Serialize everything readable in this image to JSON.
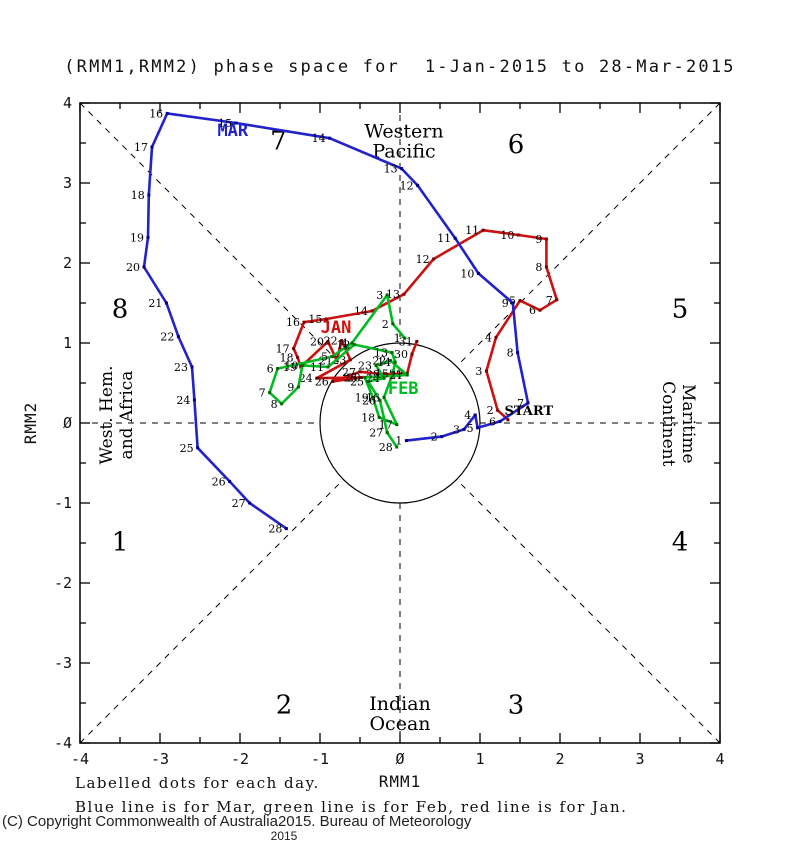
{
  "title": "(RMM1,RMM2) phase space for  1-Jan-2015 to 28-Mar-2015",
  "footer": {
    "caption_line1": "Labelled dots for each day.",
    "caption_line2": "Blue line is for Mar, green line is for Feb, red line is for Jan.",
    "copyright": "(C) Copyright Commonwealth of Australia2015. Bureau of Meteorology",
    "year": "2015"
  },
  "chart_data": {
    "type": "line",
    "title": "(RMM1,RMM2) phase space for  1-Jan-2015 to 28-Mar-2015",
    "xlabel": "RMM1",
    "ylabel": "RMM2",
    "xlim": [
      -4,
      4
    ],
    "ylim": [
      -4,
      4
    ],
    "grid": false,
    "unit_circle_radius": 1,
    "tick_minor_step": 0.5,
    "tick_values": [
      -4,
      -3,
      -2,
      -1,
      0,
      1,
      2,
      3,
      4
    ],
    "tick_labels": [
      "-4",
      "-3",
      "-2",
      "-1",
      "Ø",
      "1",
      "2",
      "3",
      "4"
    ],
    "quadrant_numbers": [
      {
        "label": "1",
        "x": -3.5,
        "y": -1.48
      },
      {
        "label": "2",
        "x": -1.45,
        "y": -3.52
      },
      {
        "label": "3",
        "x": 1.45,
        "y": -3.52
      },
      {
        "label": "4",
        "x": 3.5,
        "y": -1.48
      },
      {
        "label": "5",
        "x": 3.5,
        "y": 1.43
      },
      {
        "label": "6",
        "x": 1.45,
        "y": 3.49
      },
      {
        "label": "7",
        "x": -1.52,
        "y": 3.53
      },
      {
        "label": "8",
        "x": -3.5,
        "y": 1.43
      }
    ],
    "region_labels": [
      {
        "name": "western-pacific",
        "lines": [
          "Western",
          "Pacific"
        ],
        "x": 0.05,
        "y": 3.52,
        "rotate": 0
      },
      {
        "name": "indian-ocean",
        "lines": [
          "Indian",
          "Ocean"
        ],
        "x": 0.0,
        "y": -3.64,
        "rotate": 0
      },
      {
        "name": "west-hem-africa",
        "lines": [
          "West. Hem.",
          "and Africa"
        ],
        "x": -3.55,
        "y": 0.1,
        "rotate": -90
      },
      {
        "name": "maritime-continent",
        "lines": [
          "Maritime",
          "Continent"
        ],
        "x": 3.49,
        "y": -0.01,
        "rotate": 90
      }
    ],
    "start_label": {
      "text": "START",
      "x": 1.61,
      "y": 0.15
    },
    "series": [
      {
        "name": "Jan",
        "month_label": "JAN",
        "color": "#cc1111",
        "dot_color": "#7a0000",
        "label_x": -0.8,
        "label_y": 1.2,
        "label_day_from": 2,
        "points": [
          [
            1,
            1.35,
            0.04
          ],
          [
            2,
            1.22,
            0.16
          ],
          [
            3,
            1.08,
            0.65
          ],
          [
            4,
            1.2,
            1.07
          ],
          [
            5,
            1.5,
            1.53
          ],
          [
            6,
            1.75,
            1.41
          ],
          [
            7,
            1.96,
            1.54
          ],
          [
            8,
            1.83,
            1.95
          ],
          [
            9,
            1.83,
            2.3
          ],
          [
            10,
            1.48,
            2.35
          ],
          [
            11,
            1.04,
            2.41
          ],
          [
            12,
            0.42,
            2.05
          ],
          [
            13,
            0.05,
            1.61
          ],
          [
            14,
            -0.35,
            1.4
          ],
          [
            15,
            -0.92,
            1.3
          ],
          [
            16,
            -1.2,
            1.26
          ],
          [
            17,
            -1.33,
            0.93
          ],
          [
            18,
            -1.28,
            0.82
          ],
          [
            19,
            -1.24,
            0.7
          ],
          [
            20,
            -0.9,
            1.02
          ],
          [
            21,
            -0.79,
            0.78
          ],
          [
            22,
            -0.73,
            1.03
          ],
          [
            23,
            -0.62,
            0.79
          ],
          [
            24,
            -1.04,
            0.56
          ],
          [
            25,
            -0.48,
            0.57
          ],
          [
            26,
            -0.84,
            0.52
          ],
          [
            27,
            -0.5,
            0.64
          ],
          [
            28,
            -0.2,
            0.61
          ],
          [
            29,
            0.09,
            0.62
          ],
          [
            30,
            0.15,
            0.86
          ],
          [
            31,
            0.21,
            1.02
          ]
        ]
      },
      {
        "name": "Feb",
        "month_label": "FEB",
        "color": "#00bb22",
        "dot_color": "#006600",
        "label_x": 0.04,
        "label_y": 0.44,
        "label_day_from": 1,
        "points": [
          [
            1,
            0.06,
            1.06
          ],
          [
            2,
            -0.09,
            1.24
          ],
          [
            3,
            -0.16,
            1.6
          ],
          [
            4,
            -0.6,
            1.0
          ],
          [
            5,
            -0.85,
            0.83
          ],
          [
            6,
            -1.53,
            0.68
          ],
          [
            7,
            -1.63,
            0.38
          ],
          [
            8,
            -1.48,
            0.24
          ],
          [
            9,
            -1.27,
            0.45
          ],
          [
            10,
            -1.22,
            0.72
          ],
          [
            11,
            -0.9,
            0.7
          ],
          [
            12,
            -0.57,
            0.98
          ],
          [
            13,
            -0.1,
            0.88
          ],
          [
            14,
            -0.06,
            0.76
          ],
          [
            15,
            -0.09,
            0.62
          ],
          [
            16,
            -0.2,
            0.32
          ],
          [
            17,
            -0.04,
            -0.02
          ],
          [
            18,
            -0.26,
            0.07
          ],
          [
            19,
            -0.34,
            0.32
          ],
          [
            20,
            -0.44,
            0.57
          ],
          [
            21,
            0.09,
            0.6
          ],
          [
            22,
            -0.12,
            0.78
          ],
          [
            23,
            -0.3,
            0.72
          ],
          [
            24,
            -0.2,
            0.56
          ],
          [
            25,
            -0.4,
            0.52
          ],
          [
            26,
            -0.25,
            0.28
          ],
          [
            27,
            -0.16,
            -0.12
          ],
          [
            28,
            -0.04,
            -0.3
          ]
        ]
      },
      {
        "name": "Mar",
        "month_label": "MAR",
        "color": "#2222cc",
        "dot_color": "#00008b",
        "label_x": -2.09,
        "label_y": 3.66,
        "label_day_from": 1,
        "points": [
          [
            1,
            0.08,
            -0.22
          ],
          [
            2,
            0.52,
            -0.17
          ],
          [
            3,
            0.8,
            -0.08
          ],
          [
            4,
            0.94,
            0.1
          ],
          [
            5,
            0.97,
            -0.06
          ],
          [
            6,
            1.25,
            0.02
          ],
          [
            7,
            1.6,
            0.25
          ],
          [
            8,
            1.47,
            0.88
          ],
          [
            9,
            1.41,
            1.5
          ],
          [
            10,
            0.98,
            1.87
          ],
          [
            11,
            0.69,
            2.31
          ],
          [
            12,
            0.22,
            2.97
          ],
          [
            13,
            0.02,
            3.18
          ],
          [
            14,
            -0.88,
            3.56
          ],
          [
            15,
            -2.05,
            3.75
          ],
          [
            16,
            -2.91,
            3.87
          ],
          [
            17,
            -3.1,
            3.45
          ],
          [
            18,
            -3.14,
            2.85
          ],
          [
            19,
            -3.15,
            2.32
          ],
          [
            20,
            -3.2,
            1.95
          ],
          [
            21,
            -2.92,
            1.5
          ],
          [
            22,
            -2.77,
            1.08
          ],
          [
            23,
            -2.6,
            0.7
          ],
          [
            24,
            -2.57,
            0.29
          ],
          [
            25,
            -2.53,
            -0.31
          ],
          [
            26,
            -2.13,
            -0.73
          ],
          [
            27,
            -1.88,
            -1.0
          ],
          [
            28,
            -1.42,
            -1.32
          ]
        ]
      }
    ]
  }
}
